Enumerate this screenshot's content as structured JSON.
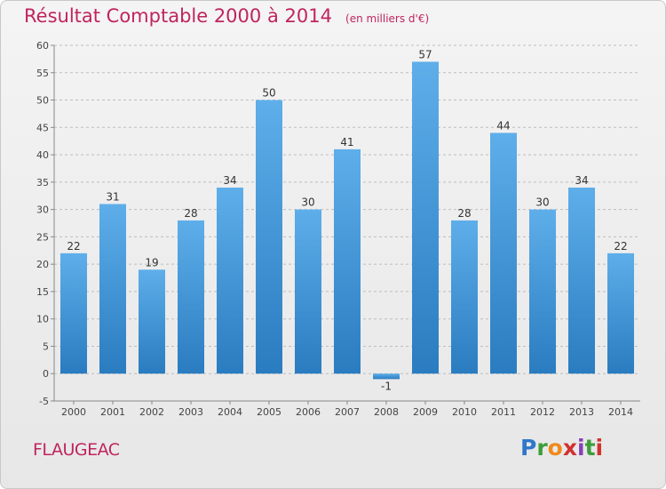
{
  "header": {
    "title": "Résultat Comptable 2000 à 2014",
    "subtitle": "(en milliers d'€)"
  },
  "footer": {
    "place": "FLAUGEAC",
    "brand": "Proxiti"
  },
  "colors": {
    "title": "#c0245e",
    "bar_light": "#5eaeea",
    "bar_dark": "#2a7cc0",
    "grid": "#bdbdbd"
  },
  "chart_data": {
    "type": "bar",
    "categories": [
      "2000",
      "2001",
      "2002",
      "2003",
      "2004",
      "2005",
      "2006",
      "2007",
      "2008",
      "2009",
      "2010",
      "2011",
      "2012",
      "2013",
      "2014"
    ],
    "values": [
      22,
      31,
      19,
      28,
      34,
      50,
      30,
      41,
      -1,
      57,
      28,
      44,
      30,
      34,
      22
    ],
    "ylim": [
      -5,
      60
    ],
    "yticks": [
      -5,
      0,
      5,
      10,
      15,
      20,
      25,
      30,
      35,
      40,
      45,
      50,
      55,
      60
    ],
    "grid": true
  }
}
